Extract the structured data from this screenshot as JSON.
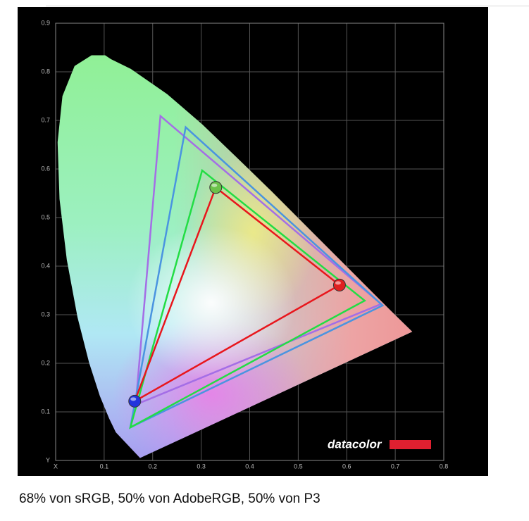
{
  "chart_data": {
    "type": "gamut",
    "xlim": [
      0,
      0.8
    ],
    "ylim": [
      0,
      0.9
    ],
    "xticks": [
      {
        "value": 0,
        "label": "X"
      },
      {
        "value": 0.1,
        "label": "0.1"
      },
      {
        "value": 0.2,
        "label": "0.2"
      },
      {
        "value": 0.3,
        "label": "0.3"
      },
      {
        "value": 0.4,
        "label": "0.4"
      },
      {
        "value": 0.5,
        "label": "0.5"
      },
      {
        "value": 0.6,
        "label": "0.6"
      },
      {
        "value": 0.7,
        "label": "0.7"
      },
      {
        "value": 0.8,
        "label": "0.8"
      }
    ],
    "yticks": [
      {
        "value": 0,
        "label": "Y"
      },
      {
        "value": 0.1,
        "label": "0.1"
      },
      {
        "value": 0.2,
        "label": "0.2"
      },
      {
        "value": 0.3,
        "label": "0.3"
      },
      {
        "value": 0.4,
        "label": "0.4"
      },
      {
        "value": 0.5,
        "label": "0.5"
      },
      {
        "value": 0.6,
        "label": "0.6"
      },
      {
        "value": 0.7,
        "label": "0.7"
      },
      {
        "value": 0.8,
        "label": "0.8"
      },
      {
        "value": 0.9,
        "label": "0.9"
      }
    ],
    "grid": true,
    "locus": {
      "x": [
        0.174,
        0.124,
        0.11,
        0.091,
        0.069,
        0.045,
        0.023,
        0.008,
        0.004,
        0.014,
        0.039,
        0.074,
        0.102,
        0.114,
        0.155,
        0.23,
        0.302,
        0.373,
        0.444,
        0.512,
        0.575,
        0.627,
        0.691,
        0.735
      ],
      "y": [
        0.005,
        0.058,
        0.087,
        0.133,
        0.201,
        0.295,
        0.413,
        0.538,
        0.655,
        0.75,
        0.812,
        0.834,
        0.834,
        0.826,
        0.806,
        0.754,
        0.692,
        0.624,
        0.555,
        0.487,
        0.424,
        0.372,
        0.308,
        0.265
      ]
    },
    "series": [
      {
        "color": "#a46ee6",
        "x": [
          0.216,
          0.671,
          0.165
        ],
        "y": [
          0.709,
          0.322,
          0.115
        ]
      },
      {
        "color": "#4a94e0",
        "x": [
          0.268,
          0.674,
          0.154
        ],
        "y": [
          0.686,
          0.319,
          0.068
        ]
      },
      {
        "color": "#22dd44",
        "x": [
          0.302,
          0.637,
          0.154
        ],
        "y": [
          0.597,
          0.329,
          0.068
        ]
      },
      {
        "color": "#e8161c",
        "x": [
          0.33,
          0.585,
          0.163
        ],
        "y": [
          0.562,
          0.361,
          0.122
        ],
        "marker_colors": [
          "#6cc24a",
          "#e02020",
          "#2233dd"
        ]
      }
    ],
    "logo": "datacolor"
  },
  "caption": "68% von sRGB, 50% von AdobeRGB, 50% von P3"
}
